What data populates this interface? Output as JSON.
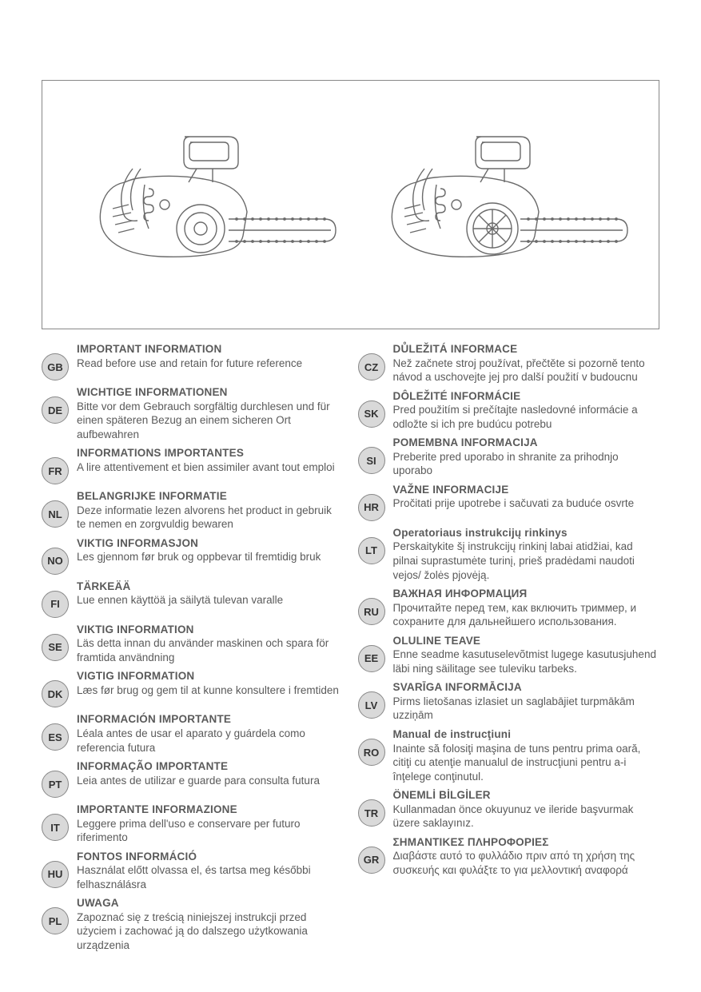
{
  "left_entries": [
    {
      "code": "GB",
      "title": "IMPORTANT INFORMATION",
      "body": "Read before use and retain for future reference"
    },
    {
      "code": "DE",
      "title": "WICHTIGE INFORMATIONEN",
      "body": "Bitte vor dem Gebrauch sorgfältig durchlesen und für einen späteren Bezug an einem sicheren Ort aufbewahren"
    },
    {
      "code": "FR",
      "title": "INFORMATIONS IMPORTANTES",
      "body": "A lire attentivement et bien assimiler avant tout emploi"
    },
    {
      "code": "NL",
      "title": "BELANGRIJKE INFORMATIE",
      "body": "Deze informatie lezen alvorens het product in gebruik te nemen en zorgvuldig bewaren"
    },
    {
      "code": "NO",
      "title": "VIKTIG INFORMASJON",
      "body": "Les gjennom før bruk og oppbevar til fremtidig bruk"
    },
    {
      "code": "FI",
      "title": "TÄRKEÄÄ",
      "body": "Lue ennen käyttöä ja säilytä tulevan varalle"
    },
    {
      "code": "SE",
      "title": "VIKTIG INFORMATION",
      "body": "Läs detta innan du använder maskinen och spara för framtida användning"
    },
    {
      "code": "DK",
      "title": "VIGTIG INFORMATION",
      "body": "Læs før brug og gem til at kunne konsultere i fremtiden"
    },
    {
      "code": "ES",
      "title": "INFORMACIÓN IMPORTANTE",
      "body": "Léala antes de usar el aparato y guárdela como referencia futura"
    },
    {
      "code": "PT",
      "title": "INFORMAÇÃO IMPORTANTE",
      "body": "Leia antes de utilizar e guarde para consulta futura"
    },
    {
      "code": "IT",
      "title": "IMPORTANTE INFORMAZIONE",
      "body": "Leggere prima dell'uso e conservare per futuro riferimento"
    },
    {
      "code": "HU",
      "title": "FONTOS INFORMÁCIÓ",
      "body": "Használat előtt olvassa el, és tartsa meg későbbi felhasználásra"
    },
    {
      "code": "PL",
      "title": "UWAGA",
      "body": "Zapoznać się z treścią niniejszej instrukcji przed użyciem i zachować ją do dalszego użytkowania urządzenia"
    }
  ],
  "right_entries": [
    {
      "code": "CZ",
      "title": "DŮLEŽITÁ INFORMACE",
      "body": "Než začnete stroj používat, přečtěte si pozorně tento návod a uschovejte jej pro další použití v budoucnu"
    },
    {
      "code": "SK",
      "title": "DÔLEŽITÉ INFORMÁCIE",
      "body": "Pred použitím si prečítajte nasledovné informácie a odložte si ich pre budúcu potrebu"
    },
    {
      "code": "SI",
      "title": "POMEMBNA INFORMACIJA",
      "body": "Preberite pred uporabo in shranite za prihodnjo uporabo"
    },
    {
      "code": "HR",
      "title": "VAŽNE INFORMACIJE",
      "body": "Pročitati prije upotrebe i sačuvati za buduće osvrte"
    },
    {
      "code": "LT",
      "title": "Operatoriaus instrukcijų rinkinys",
      "body": "Perskaitykite šį instrukcijų rinkinį labai atidžiai, kad pilnai suprastumėte turinį, prieš pradėdami naudoti vejos/ žolės pjovėją."
    },
    {
      "code": "RU",
      "title": "ВАЖНАЯ ИНФОРМАЦИЯ",
      "body": "Прочитайте перед тем, как включить триммер, и сохраните для дальнейшего использования."
    },
    {
      "code": "EE",
      "title": "OLULINE TEAVE",
      "body": "Enne seadme kasutuselevõtmist lugege kasutusjuhend läbi ning säilitage see tuleviku tarbeks."
    },
    {
      "code": "LV",
      "title": "SVARĪGA INFORMĀCIJA",
      "body": "Pirms lietošanas izlasiet un saglabājiet turpmākām uzziņām"
    },
    {
      "code": "RO",
      "title": "Manual de instrucţiuni",
      "body": "Inainte să folosiţi maşina de tuns pentru prima oară, citiţi cu atenţie manualul de instrucţiuni pentru a-i înţelege conţinutul."
    },
    {
      "code": "TR",
      "title": "ÖNEMLİ BİLGİLER",
      "body": "Kullanmadan önce okuyunuz ve ileride başvurmak üzere saklayınız."
    },
    {
      "code": "GR",
      "title": "ΣΗΜΑΝΤΙΚΕΣ ΠΛΗΡΟΦΟΡΙΕΣ",
      "body": "Διαβάστε αυτό το φυλλάδιο  πριν από τη χρήση της συσκευής και φυλάξτε το για μελλοντική αναφορά"
    }
  ],
  "illustration": {
    "stroke": "#6a6a6a",
    "stroke_width": 1.4,
    "fill": "none"
  }
}
